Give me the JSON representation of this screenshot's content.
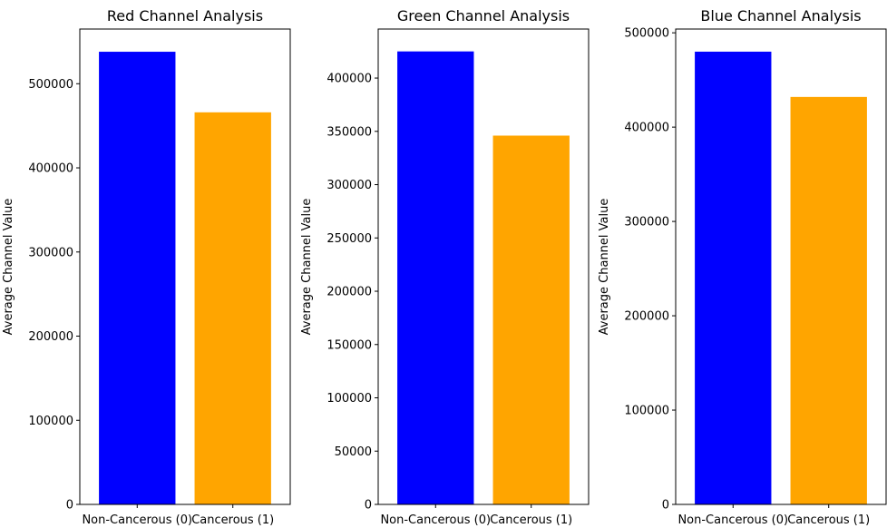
{
  "chart_data": [
    {
      "type": "bar",
      "title": "Red Channel Analysis",
      "xlabel": "",
      "ylabel": "Average Channel Value",
      "categories": [
        "Non-Cancerous (0)",
        "Cancerous (1)"
      ],
      "values": [
        538000,
        466000
      ],
      "colors": [
        "#0000ff",
        "#ffa500"
      ],
      "ylim": [
        0,
        565000
      ],
      "yticks": [
        0,
        100000,
        200000,
        300000,
        400000,
        500000
      ],
      "ytick_labels": [
        "0",
        "100000",
        "200000",
        "300000",
        "400000",
        "500000"
      ],
      "grid": false
    },
    {
      "type": "bar",
      "title": "Green Channel Analysis",
      "xlabel": "",
      "ylabel": "Average Channel Value",
      "categories": [
        "Non-Cancerous (0)",
        "Cancerous (1)"
      ],
      "values": [
        425000,
        346000
      ],
      "colors": [
        "#0000ff",
        "#ffa500"
      ],
      "ylim": [
        0,
        446000
      ],
      "yticks": [
        0,
        50000,
        100000,
        150000,
        200000,
        250000,
        300000,
        350000,
        400000
      ],
      "ytick_labels": [
        "0",
        "50000",
        "100000",
        "150000",
        "200000",
        "250000",
        "300000",
        "350000",
        "400000"
      ],
      "grid": false
    },
    {
      "type": "bar",
      "title": "Blue Channel Analysis",
      "xlabel": "",
      "ylabel": "Average Channel Value",
      "categories": [
        "Non-Cancerous (0)",
        "Cancerous (1)"
      ],
      "values": [
        480000,
        432000
      ],
      "colors": [
        "#0000ff",
        "#ffa500"
      ],
      "ylim": [
        0,
        504000
      ],
      "yticks": [
        0,
        100000,
        200000,
        300000,
        400000,
        500000
      ],
      "ytick_labels": [
        "0",
        "100000",
        "200000",
        "300000",
        "400000",
        "500000"
      ],
      "grid": false
    }
  ]
}
